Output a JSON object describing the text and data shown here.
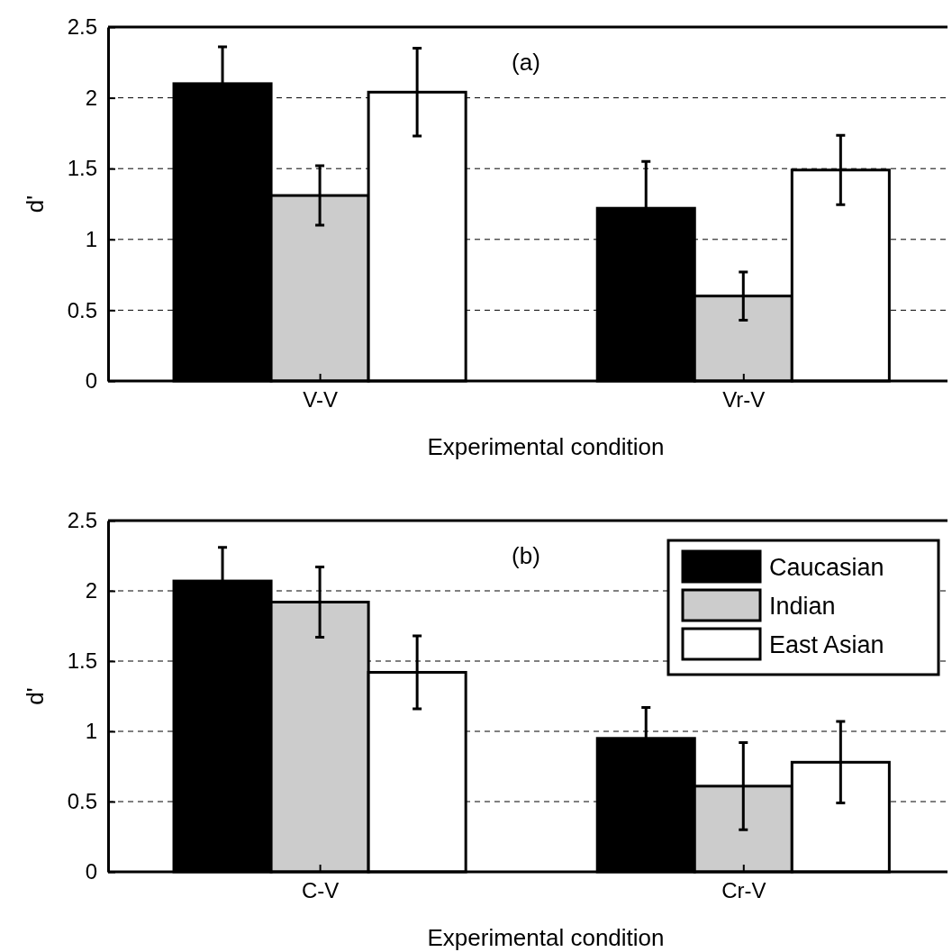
{
  "chart_data": [
    {
      "type": "bar",
      "title": "(a)",
      "xlabel": "Experimental condition",
      "ylabel": "d'",
      "categories": [
        "V-V",
        "Vr-V"
      ],
      "ylim": [
        0,
        2.5
      ],
      "yticks": [
        0,
        0.5,
        1,
        1.5,
        2,
        2.5
      ],
      "grid": "y",
      "legend": false,
      "series": [
        {
          "color": "#000000",
          "values": [
            2.1,
            1.22
          ],
          "errors": [
            0.26,
            0.33
          ]
        },
        {
          "color": "#cccccc",
          "values": [
            1.31,
            0.6
          ],
          "errors": [
            0.21,
            0.17
          ]
        },
        {
          "color": "#ffffff",
          "values": [
            2.04,
            1.49
          ],
          "errors": [
            0.31,
            0.245
          ]
        }
      ]
    },
    {
      "type": "bar",
      "title": "(b)",
      "xlabel": "Experimental condition",
      "ylabel": "d'",
      "categories": [
        "C-V",
        "Cr-V"
      ],
      "ylim": [
        0,
        2.5
      ],
      "yticks": [
        0,
        0.5,
        1,
        1.5,
        2,
        2.5
      ],
      "grid": "y",
      "legend": "top right",
      "series": [
        {
          "name": "Caucasian",
          "color": "#000000",
          "values": [
            2.07,
            0.95
          ],
          "errors": [
            0.24,
            0.22
          ]
        },
        {
          "name": "Indian",
          "color": "#cccccc",
          "values": [
            1.92,
            0.61
          ],
          "errors": [
            0.25,
            0.31
          ]
        },
        {
          "name": "East Asian",
          "color": "#ffffff",
          "values": [
            1.42,
            0.78
          ],
          "errors": [
            0.26,
            0.29
          ]
        }
      ]
    }
  ]
}
